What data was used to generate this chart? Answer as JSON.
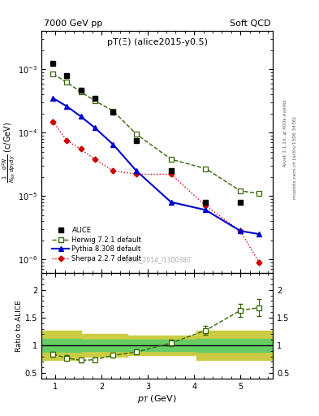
{
  "title_left": "7000 GeV pp",
  "title_right": "Soft QCD",
  "annotation": "pT(Ξ) (alice2015-y0.5)",
  "watermark": "ALICE_2014_I1300380",
  "right_label1": "Rivet 3.1.10, ≥ 400k events",
  "right_label2": "mcplots.cern.ch [arXiv:1306.3436]",
  "ylabel_main": "$\\frac{1}{N_{tot}} \\frac{d^2N}{dp_{T}dy}$ (c/GeV)",
  "ylabel_ratio": "Ratio to ALICE",
  "xlabel": "$p_T$ (GeV)",
  "xlim": [
    0.7,
    5.7
  ],
  "ylim_main": [
    6e-07,
    0.004
  ],
  "ylim_ratio": [
    0.4,
    2.3
  ],
  "alice_pt": [
    0.95,
    1.25,
    1.55,
    1.85,
    2.25,
    2.75,
    3.5,
    4.25,
    5.0
  ],
  "alice_y": [
    0.00125,
    0.0008,
    0.00047,
    0.00035,
    0.00021,
    7.5e-05,
    2.5e-05,
    8e-06,
    8e-06
  ],
  "alice_yerr": [
    8e-05,
    5e-05,
    3e-05,
    2e-05,
    1.2e-05,
    0.0,
    0.0,
    0.0,
    0.0
  ],
  "herwig_pt": [
    0.95,
    1.25,
    1.55,
    1.85,
    2.25,
    2.75,
    3.5,
    4.25,
    5.0,
    5.4
  ],
  "herwig_y": [
    0.00085,
    0.00062,
    0.00044,
    0.00032,
    0.00022,
    9.5e-05,
    3.8e-05,
    2.7e-05,
    1.2e-05,
    1.1e-05
  ],
  "pythia_pt": [
    0.95,
    1.25,
    1.55,
    1.85,
    2.25,
    2.75,
    3.5,
    4.25,
    5.0,
    5.4
  ],
  "pythia_y": [
    0.00035,
    0.00026,
    0.00018,
    0.00012,
    6.5e-05,
    2.5e-05,
    8e-06,
    6e-06,
    2.8e-06,
    2.5e-06
  ],
  "sherpa_pt": [
    0.95,
    1.25,
    1.55,
    1.85,
    2.25,
    2.75,
    3.5,
    4.25,
    5.0,
    5.4
  ],
  "sherpa_y": [
    0.00015,
    7.5e-05,
    5.5e-05,
    3.8e-05,
    2.5e-05,
    2.2e-05,
    2.2e-05,
    7e-06,
    2.8e-06,
    9e-07
  ],
  "sherpa_yerr": [
    0.0,
    5e-07,
    4e-07,
    4e-07,
    3e-07,
    3e-07,
    5e-07,
    2e-08,
    4e-09,
    5e-08
  ],
  "ratio_herwig_pt": [
    0.95,
    1.25,
    1.55,
    1.85,
    2.25,
    2.75,
    3.5,
    4.25,
    5.0,
    5.4
  ],
  "ratio_herwig_y": [
    0.84,
    0.77,
    0.73,
    0.74,
    0.82,
    0.88,
    1.04,
    1.27,
    1.63,
    1.68
  ],
  "ratio_herwig_yerr": [
    0.05,
    0.05,
    0.04,
    0.04,
    0.04,
    0.04,
    0.06,
    0.08,
    0.12,
    0.15
  ],
  "band_regions": [
    {
      "xlo": 0.7,
      "xhi": 1.55,
      "green_lo": 0.88,
      "green_hi": 1.12,
      "yellow_lo": 0.73,
      "yellow_hi": 1.27
    },
    {
      "xlo": 1.55,
      "xhi": 2.55,
      "green_lo": 0.9,
      "green_hi": 1.1,
      "yellow_lo": 0.8,
      "yellow_hi": 1.2
    },
    {
      "xlo": 2.55,
      "xhi": 4.05,
      "green_lo": 0.9,
      "green_hi": 1.1,
      "yellow_lo": 0.82,
      "yellow_hi": 1.18
    },
    {
      "xlo": 4.05,
      "xhi": 5.7,
      "green_lo": 0.88,
      "green_hi": 1.12,
      "yellow_lo": 0.73,
      "yellow_hi": 1.27
    }
  ],
  "colors": {
    "alice": "#000000",
    "herwig": "#336600",
    "pythia": "#0000cc",
    "sherpa": "#cc0000",
    "band_green": "#66cc66",
    "band_yellow": "#cccc44",
    "ratio_line": "#000000"
  },
  "legend_items": [
    "ALICE",
    "Herwig 7.2.1 default",
    "Pythia 8.308 default",
    "Sherpa 2.2.7 default"
  ]
}
